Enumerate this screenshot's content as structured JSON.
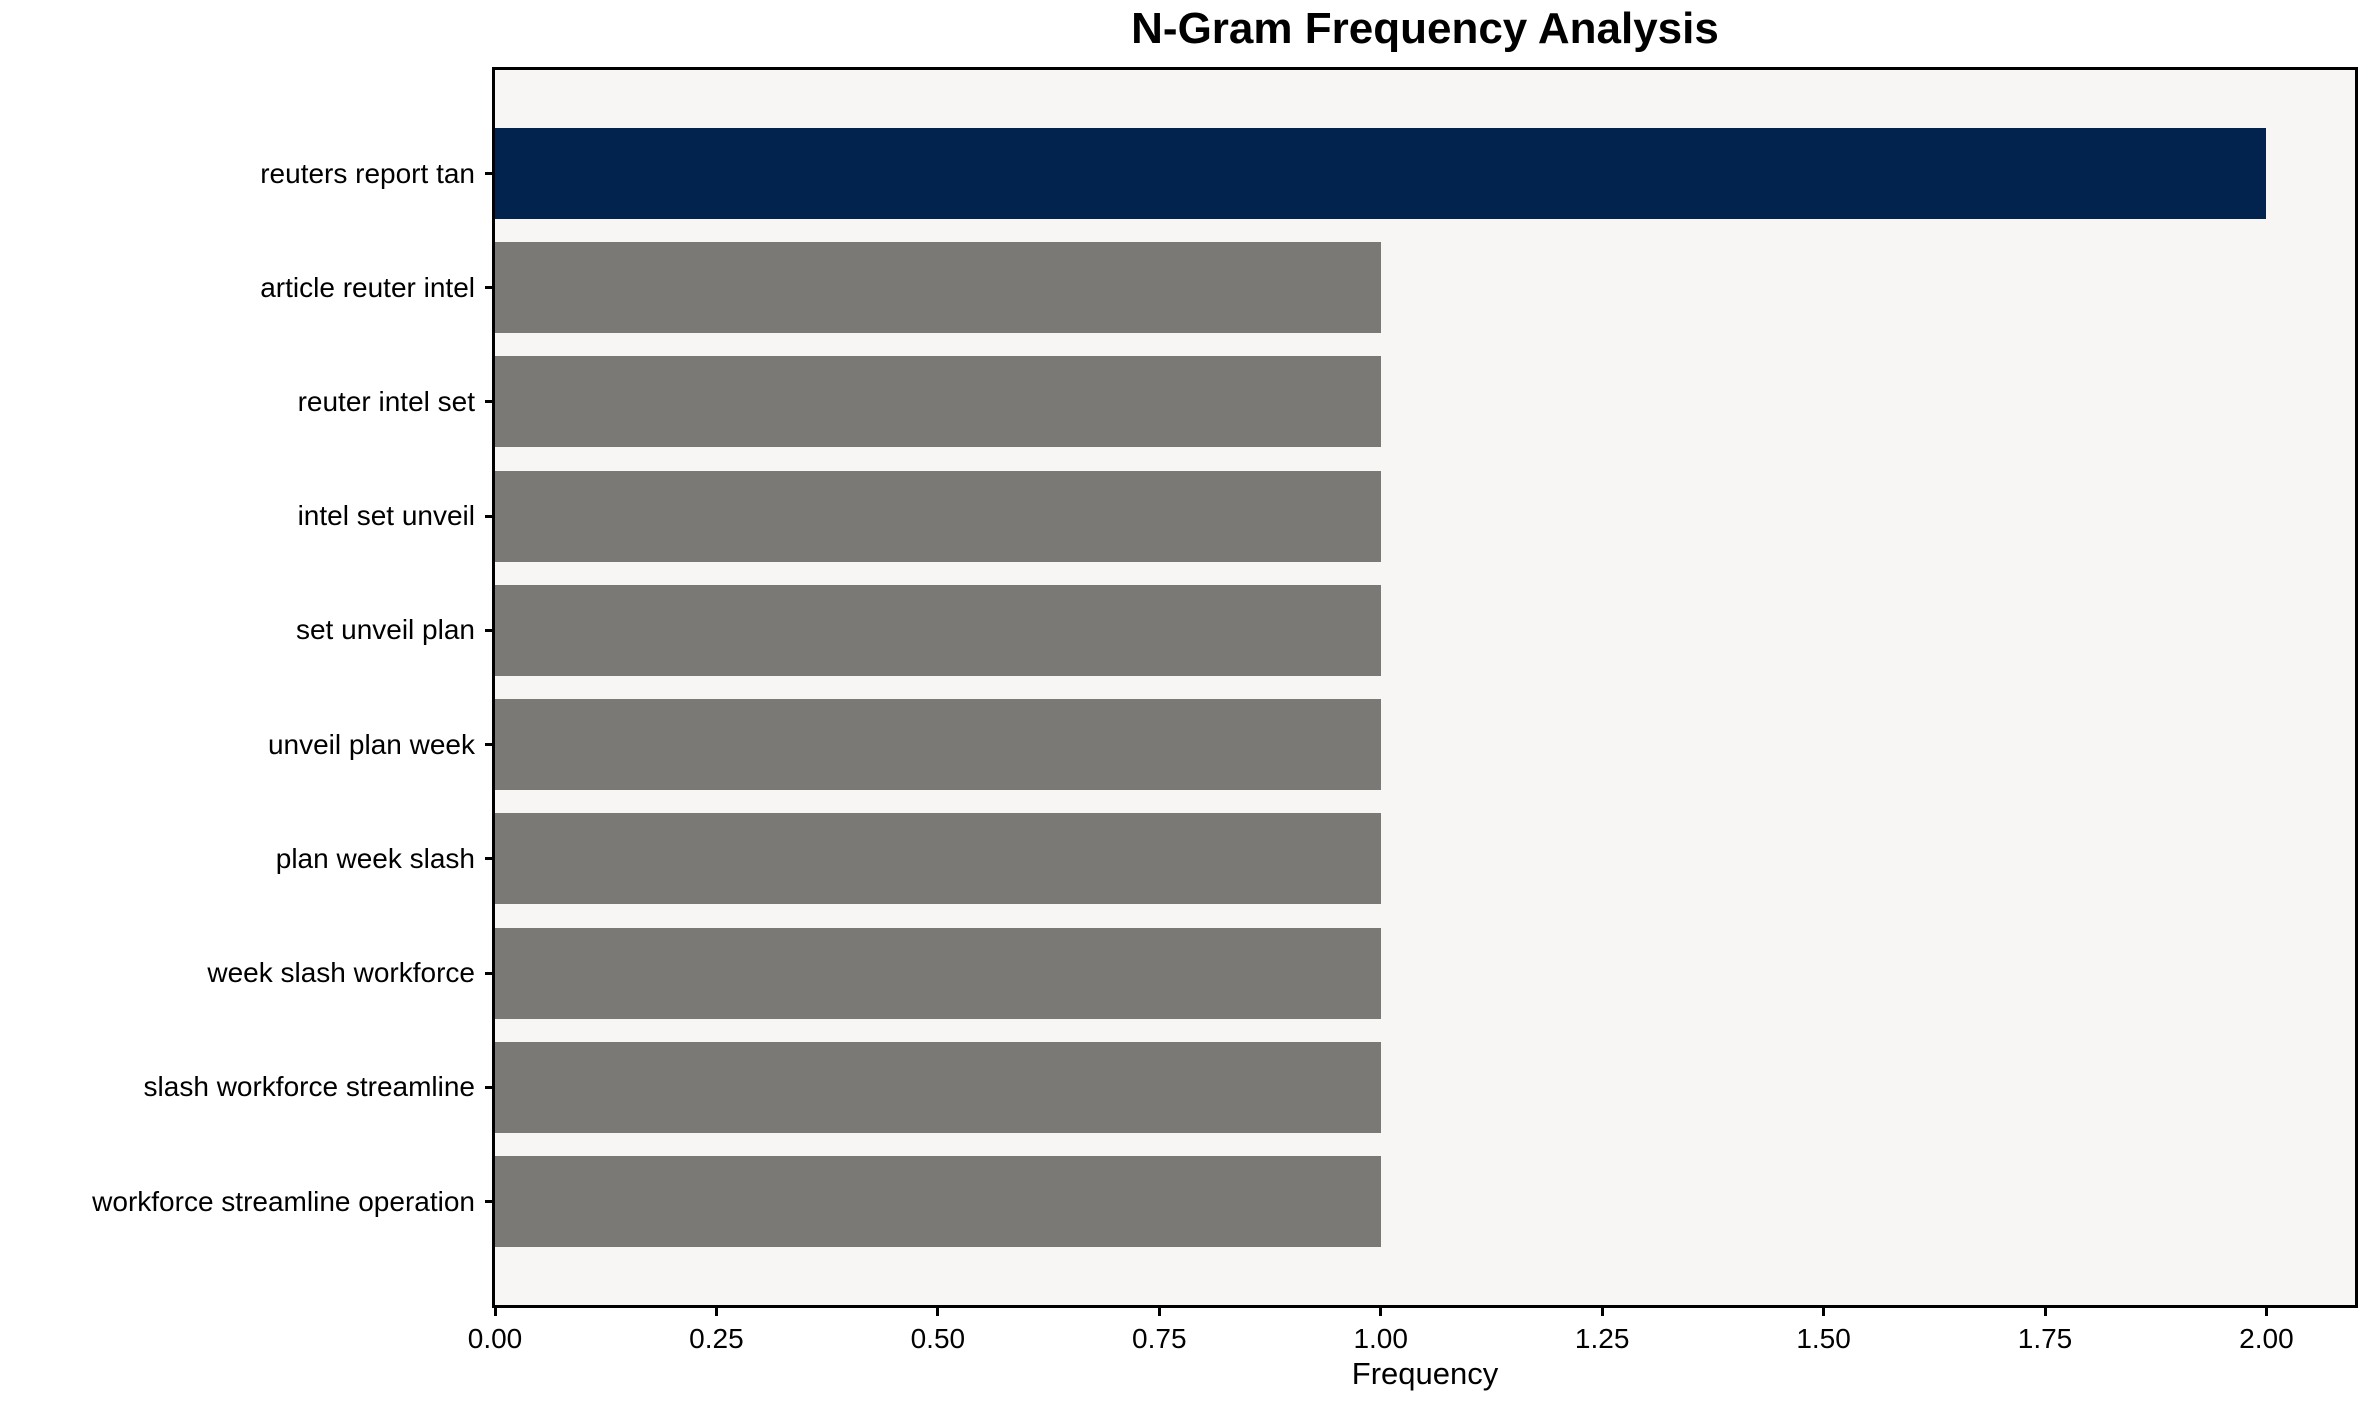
{
  "chart_data": {
    "type": "bar",
    "orientation": "horizontal",
    "title": "N-Gram Frequency Analysis",
    "categories": [
      "reuters report tan",
      "article reuter intel",
      "reuter intel set",
      "intel set unveil",
      "set unveil plan",
      "unveil plan week",
      "plan week slash",
      "week slash workforce",
      "slash workforce streamline",
      "workforce streamline operation"
    ],
    "values": [
      2,
      1,
      1,
      1,
      1,
      1,
      1,
      1,
      1,
      1
    ],
    "xlabel": "Frequency",
    "ylabel": "",
    "xlim": [
      0,
      2.1
    ],
    "xticks": [
      0,
      0.25,
      0.5,
      0.75,
      1,
      1.25,
      1.5,
      1.75,
      2
    ],
    "xtick_labels": [
      "0.00",
      "0.25",
      "0.50",
      "0.75",
      "1.00",
      "1.25",
      "1.50",
      "1.75",
      "2.00"
    ],
    "grid": false,
    "legend": false,
    "bar_colors": [
      "#02234d",
      "#7a7975",
      "#7a7975",
      "#7a7975",
      "#7a7975",
      "#7a7975",
      "#7a7975",
      "#7a7975",
      "#7a7975",
      "#7a7975"
    ],
    "colors": {
      "highlight_bar": "#02234d",
      "default_bar": "#7a7975",
      "plot_background": "#f7f6f5",
      "figure_background": "#ffffff",
      "spine": "#000000",
      "text": "#000000"
    }
  }
}
